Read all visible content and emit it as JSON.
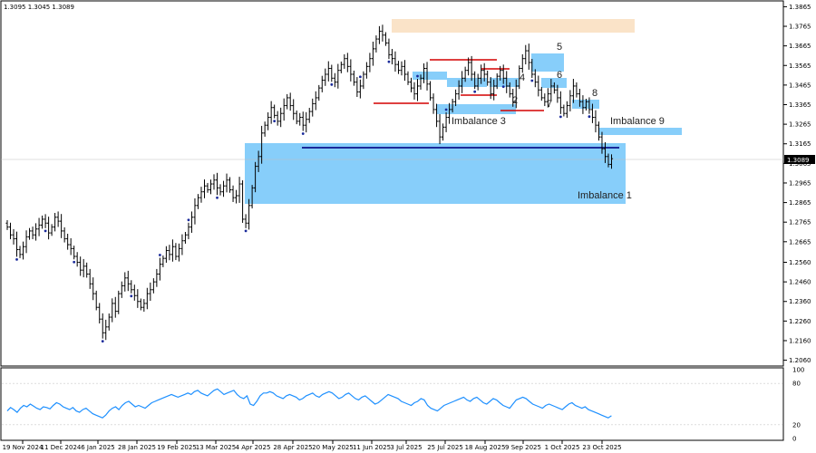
{
  "ohlc_label": "1.3095 1.3045 1.3089",
  "current_price": "1.3089",
  "chart_data": {
    "type": "candlestick",
    "symbol_timeframe": "",
    "y_ticks": [
      "1.3865",
      "1.3765",
      "1.3665",
      "1.3565",
      "1.3465",
      "1.3365",
      "1.3265",
      "1.3165",
      "1.3065",
      "1.2965",
      "1.2865",
      "1.2765",
      "1.2665",
      "1.2560",
      "1.2460",
      "1.2360",
      "1.2260",
      "1.2160",
      "1.2060"
    ],
    "x_ticks": [
      "19 Nov 2024",
      "11 Dec 2024",
      "6 Jan 2025",
      "28 Jan 2025",
      "19 Feb 2025",
      "13 Mar 2025",
      "4 Apr 2025",
      "28 Apr 2025",
      "20 May 2025",
      "11 Jun 2025",
      "3 Jul 2025",
      "25 Jul 2025",
      "18 Aug 2025",
      "9 Sep 2025",
      "1 Oct 2025",
      "23 Oct 2025"
    ],
    "ylim": [
      1.2035,
      1.389
    ],
    "closes": [
      1.274,
      1.27,
      1.268,
      1.2625,
      1.26,
      1.264,
      1.269,
      1.272,
      1.27,
      1.273,
      1.275,
      1.278,
      1.276,
      1.271,
      1.274,
      1.279,
      1.277,
      1.272,
      1.268,
      1.265,
      1.263,
      1.259,
      1.256,
      1.252,
      1.254,
      1.25,
      1.245,
      1.24,
      1.233,
      1.227,
      1.22,
      1.223,
      1.228,
      1.235,
      1.231,
      1.24,
      1.244,
      1.248,
      1.245,
      1.242,
      1.239,
      1.236,
      1.233,
      1.235,
      1.24,
      1.242,
      1.246,
      1.25,
      1.255,
      1.258,
      1.262,
      1.26,
      1.264,
      1.259,
      1.263,
      1.267,
      1.27,
      1.274,
      1.279,
      1.285,
      1.289,
      1.292,
      1.295,
      1.293,
      1.296,
      1.298,
      1.294,
      1.292,
      1.295,
      1.298,
      1.293,
      1.289,
      1.29,
      1.296,
      1.278,
      1.276,
      1.285,
      1.294,
      1.305,
      1.31,
      1.322,
      1.326,
      1.33,
      1.335,
      1.331,
      1.328,
      1.332,
      1.336,
      1.34,
      1.336,
      1.332,
      1.328,
      1.33,
      1.326,
      1.329,
      1.333,
      1.337,
      1.34,
      1.345,
      1.349,
      1.352,
      1.355,
      1.35,
      1.348,
      1.354,
      1.357,
      1.36,
      1.356,
      1.352,
      1.348,
      1.343,
      1.346,
      1.352,
      1.356,
      1.36,
      1.365,
      1.37,
      1.374,
      1.372,
      1.368,
      1.362,
      1.36,
      1.357,
      1.354,
      1.356,
      1.352,
      1.348,
      1.345,
      1.342,
      1.346,
      1.35,
      1.355,
      1.347,
      1.34,
      1.334,
      1.328,
      1.32,
      1.325,
      1.33,
      1.334,
      1.338,
      1.342,
      1.346,
      1.35,
      1.354,
      1.358,
      1.352,
      1.346,
      1.35,
      1.354,
      1.352,
      1.348,
      1.342,
      1.346,
      1.351,
      1.354,
      1.35,
      1.346,
      1.342,
      1.338,
      1.346,
      1.355,
      1.36,
      1.364,
      1.358,
      1.352,
      1.348,
      1.344,
      1.34,
      1.338,
      1.342,
      1.346,
      1.344,
      1.34,
      1.335,
      1.332,
      1.336,
      1.341,
      1.346,
      1.342,
      1.338,
      1.335,
      1.338,
      1.334,
      1.33,
      1.326,
      1.32,
      1.314,
      1.31,
      1.306,
      1.3089
    ]
  },
  "annotations": {
    "imbalance1": "Imbalance 1",
    "imbalance3": "Imbalance 3",
    "imbalance9": "Imbalance 9",
    "n2": "2",
    "n4": "4",
    "n5": "5",
    "n6": "6",
    "n7": "7",
    "n8": "8"
  },
  "indicator": {
    "ticks": [
      "100",
      "80",
      "20",
      "0"
    ],
    "values": [
      40,
      45,
      42,
      38,
      44,
      48,
      46,
      50,
      47,
      44,
      42,
      46,
      45,
      43,
      48,
      52,
      50,
      46,
      44,
      42,
      45,
      40,
      38,
      42,
      44,
      40,
      36,
      34,
      32,
      30,
      34,
      40,
      44,
      46,
      42,
      48,
      52,
      54,
      50,
      46,
      48,
      46,
      44,
      48,
      52,
      54,
      56,
      58,
      60,
      62,
      64,
      62,
      60,
      62,
      64,
      66,
      64,
      68,
      70,
      66,
      64,
      62,
      66,
      70,
      72,
      68,
      64,
      66,
      68,
      70,
      64,
      60,
      58,
      62,
      50,
      48,
      54,
      62,
      66,
      66,
      68,
      66,
      62,
      60,
      58,
      62,
      64,
      62,
      60,
      56,
      58,
      62,
      64,
      66,
      62,
      60,
      64,
      66,
      68,
      66,
      62,
      58,
      60,
      64,
      66,
      62,
      58,
      56,
      60,
      62,
      58,
      54,
      50,
      52,
      56,
      60,
      64,
      62,
      60,
      58,
      54,
      52,
      50,
      48,
      52,
      54,
      58,
      56,
      48,
      44,
      42,
      40,
      44,
      48,
      50,
      52,
      54,
      56,
      58,
      60,
      56,
      54,
      58,
      60,
      56,
      52,
      50,
      54,
      58,
      56,
      52,
      48,
      46,
      44,
      50,
      56,
      58,
      60,
      58,
      54,
      50,
      48,
      46,
      44,
      48,
      50,
      48,
      46,
      44,
      42,
      46,
      50,
      52,
      48,
      46,
      44,
      46,
      42,
      40,
      38,
      36,
      34,
      32,
      30,
      33
    ]
  }
}
